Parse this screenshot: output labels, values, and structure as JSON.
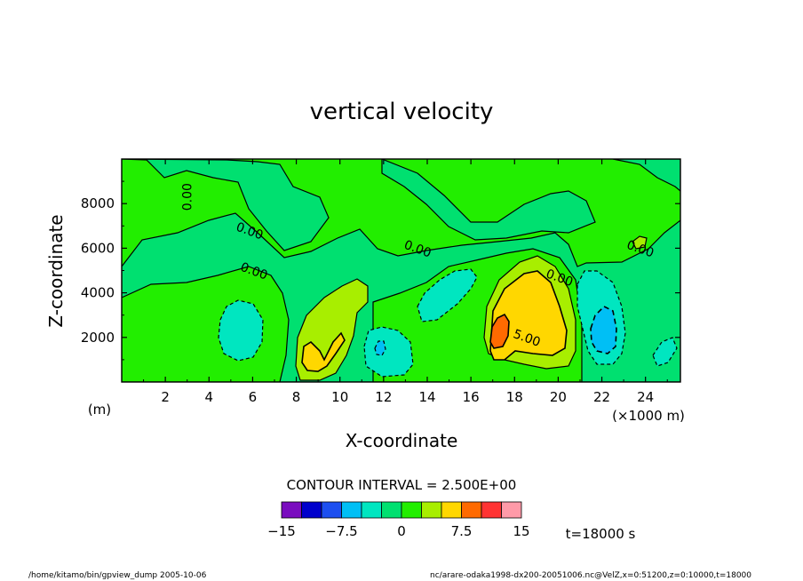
{
  "chart_data": {
    "type": "heatmap",
    "title": "vertical velocity",
    "xlabel": "X-coordinate",
    "ylabel": "Z-coordinate",
    "x_unit_label": "(×1000 m)",
    "y_unit_label": "(m)",
    "xlim": [
      0,
      25.6
    ],
    "ylim": [
      0,
      10000
    ],
    "x_ticks": [
      2,
      4,
      6,
      8,
      10,
      12,
      14,
      16,
      18,
      20,
      22,
      24
    ],
    "y_ticks": [
      2000,
      4000,
      6000,
      8000
    ],
    "grid": false,
    "contour_interval_text": "CONTOUR INTERVAL = 2.500E+00",
    "colorbar": {
      "levels": [
        -15,
        -12.5,
        -10,
        -7.5,
        -5,
        -2.5,
        0,
        2.5,
        5,
        7.5,
        10,
        12.5,
        15
      ],
      "colors": [
        "#7a0dbf",
        "#0000cc",
        "#1d4ff0",
        "#00bff5",
        "#00e6c0",
        "#00e070",
        "#22ee00",
        "#a8ee00",
        "#ffd700",
        "#ff6a00",
        "#ff3333",
        "#ff9aa8"
      ],
      "tick_labels": [
        "−15",
        "−7.5",
        "0",
        "7.5",
        "15"
      ],
      "tick_values": [
        -15,
        -7.5,
        0,
        7.5,
        15
      ]
    },
    "contour_labels": [
      {
        "text": "0.00",
        "x": 3.2,
        "z": 8300
      },
      {
        "text": "0.00",
        "x": 5.8,
        "z": 6600
      },
      {
        "text": "0.00",
        "x": 6.0,
        "z": 4800
      },
      {
        "text": "0.00",
        "x": 13.5,
        "z": 5800
      },
      {
        "text": "0.00",
        "x": 20.0,
        "z": 4500
      },
      {
        "text": "0.00",
        "x": 23.7,
        "z": 5800
      },
      {
        "text": "5.00",
        "x": 18.5,
        "z": 1800
      }
    ],
    "features": [
      {
        "type": "max",
        "x": 17.0,
        "z": 2300,
        "value": 8.5
      },
      {
        "type": "max",
        "x": 18.5,
        "z": 3500,
        "value": 6.5
      },
      {
        "type": "max",
        "x": 9.2,
        "z": 1300,
        "value": 5.5
      },
      {
        "type": "max",
        "x": 9.8,
        "z": 2600,
        "value": 3.0
      },
      {
        "type": "min",
        "x": 22.0,
        "z": 2200,
        "value": -4.5
      },
      {
        "type": "min",
        "x": 5.5,
        "z": 2300,
        "value": -1.5
      },
      {
        "type": "min",
        "x": 12.0,
        "z": 1400,
        "value": -2.0
      },
      {
        "type": "min",
        "x": 15.0,
        "z": 3800,
        "value": -1.5
      },
      {
        "type": "min",
        "x": 21.0,
        "z": 3800,
        "value": -1.2
      },
      {
        "type": "min",
        "x": 24.0,
        "z": 1300,
        "value": -1.2
      },
      {
        "type": "max",
        "x": 24.5,
        "z": 3500,
        "value": 1.5
      }
    ],
    "time_label": "t=18000 s"
  },
  "footer": {
    "left": "/home/kitamo/bin/gpview_dump  2005-10-06",
    "right": "nc/arare-odaka1998-dx200-20051006.nc@VelZ,x=0:51200,z=0:10000,t=18000"
  }
}
